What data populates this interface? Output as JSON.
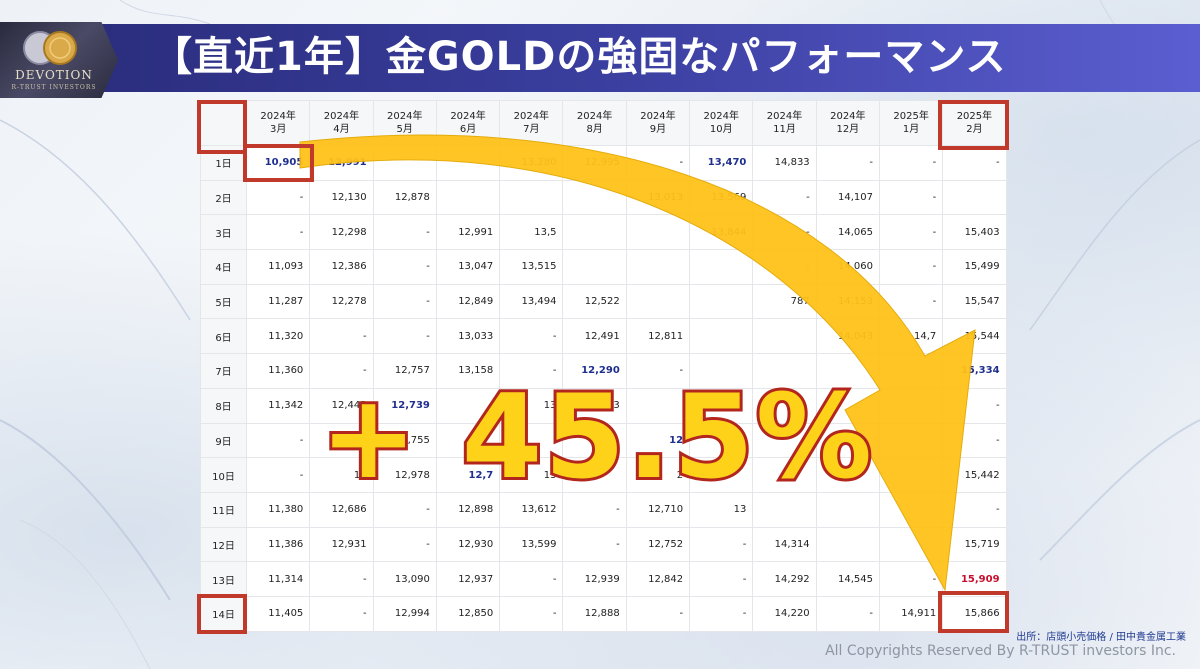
{
  "header": {
    "title": "【直近1年】金GOLDの強固なパフォーマンス"
  },
  "logo": {
    "text": "DEVOTION",
    "subtext": "R-TRUST INVESTORS"
  },
  "table": {
    "columns": [
      "",
      "2024年\n3月",
      "2024年\n4月",
      "2024年\n5月",
      "2024年\n6月",
      "2024年\n7月",
      "2024年\n8月",
      "2024年\n9月",
      "2024年\n10月",
      "2024年\n11月",
      "2024年\n12月",
      "2025年\n1月",
      "2025年\n2月"
    ],
    "rows": [
      [
        "1日",
        "10,905",
        "12,991",
        "",
        "",
        "13,280",
        "12,995",
        "-",
        "13,470",
        "14,833",
        "-",
        "-",
        "-"
      ],
      [
        "2日",
        "-",
        "12,130",
        "12,878",
        "",
        "",
        "",
        "13,013",
        "13,569",
        "-",
        "14,107",
        "-",
        ""
      ],
      [
        "3日",
        "-",
        "12,298",
        "-",
        "12,991",
        "13,5",
        "",
        "",
        "13,844",
        "-",
        "14,065",
        "-",
        "15,403"
      ],
      [
        "4日",
        "11,093",
        "12,386",
        "-",
        "13,047",
        "13,515",
        "",
        "",
        "",
        "-",
        "14,060",
        "-",
        "15,499"
      ],
      [
        "5日",
        "11,287",
        "12,278",
        "-",
        "12,849",
        "13,494",
        "12,522",
        "",
        "",
        "787",
        "14,153",
        "-",
        "15,547"
      ],
      [
        "6日",
        "11,320",
        "-",
        "-",
        "13,033",
        "-",
        "12,491",
        "12,811",
        "",
        "",
        "14,043",
        "14,7",
        "15,544"
      ],
      [
        "7日",
        "11,360",
        "-",
        "12,757",
        "13,158",
        "-",
        "12,290",
        "-",
        "",
        "",
        "",
        "",
        "15,334"
      ],
      [
        "8日",
        "11,342",
        "12,442",
        "12,739",
        "",
        "13",
        "3",
        "",
        "",
        "",
        "",
        "",
        "-"
      ],
      [
        "9日",
        "-",
        "",
        "2,755",
        "",
        "",
        "",
        "12",
        "",
        "",
        "",
        "",
        "-"
      ],
      [
        "10日",
        "-",
        "12",
        "12,978",
        "12,7",
        "13",
        "",
        "2",
        "",
        "",
        "",
        "",
        "15,442"
      ],
      [
        "11日",
        "11,380",
        "12,686",
        "-",
        "12,898",
        "13,612",
        "-",
        "12,710",
        "13",
        "",
        "",
        "",
        "-"
      ],
      [
        "12日",
        "11,386",
        "12,931",
        "-",
        "12,930",
        "13,599",
        "-",
        "12,752",
        "-",
        "14,314",
        "",
        "",
        "15,719"
      ],
      [
        "13日",
        "11,314",
        "-",
        "13,090",
        "12,937",
        "-",
        "12,939",
        "12,842",
        "-",
        "14,292",
        "14,545",
        "-",
        "15,909"
      ],
      [
        "14日",
        "11,405",
        "-",
        "12,994",
        "12,850",
        "-",
        "12,888",
        "-",
        "-",
        "14,220",
        "-",
        "14,911",
        "15,866"
      ]
    ],
    "blue_cells": [
      "0-1",
      "0-2",
      "0-8",
      "6-6",
      "6-12",
      "7-3",
      "8-7",
      "9-4"
    ],
    "red_cells": [
      "12-12"
    ]
  },
  "callout": {
    "text": "+ 45.5%"
  },
  "footer": {
    "source": "出所：店頭小売価格 / 田中貴金属工業",
    "copyright": "All Copyrights Reserved By R-TRUST investors Inc."
  },
  "colors": {
    "header": "#3a3e9e",
    "highlight_box": "#c0392b",
    "arrow": "#ffc21a",
    "callout_fill": "#ffd21a",
    "callout_stroke": "#b3261e"
  }
}
